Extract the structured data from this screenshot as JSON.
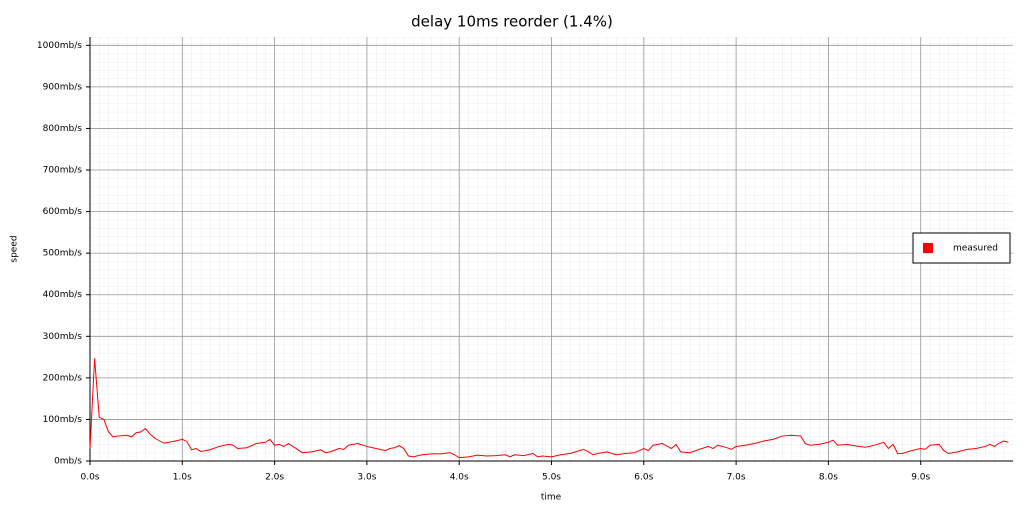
{
  "chart_data": {
    "type": "line",
    "title": "delay 10ms reorder (1.4%)",
    "x_label": "time",
    "y_label": "speed",
    "x": [
      0,
      0.05,
      0.1,
      0.15,
      0.2,
      0.25,
      0.3,
      0.4,
      0.45,
      0.5,
      0.55,
      0.6,
      0.65,
      0.7,
      0.8,
      0.9,
      1.0,
      1.05,
      1.1,
      1.15,
      1.2,
      1.3,
      1.4,
      1.5,
      1.55,
      1.6,
      1.7,
      1.8,
      1.9,
      1.95,
      2.0,
      2.05,
      2.1,
      2.15,
      2.2,
      2.3,
      2.4,
      2.5,
      2.55,
      2.6,
      2.7,
      2.75,
      2.8,
      2.9,
      3.0,
      3.1,
      3.2,
      3.25,
      3.3,
      3.35,
      3.4,
      3.45,
      3.5,
      3.6,
      3.7,
      3.8,
      3.9,
      3.95,
      4.0,
      4.1,
      4.2,
      4.3,
      4.4,
      4.5,
      4.55,
      4.6,
      4.7,
      4.8,
      4.85,
      4.9,
      5.0,
      5.1,
      5.2,
      5.3,
      5.35,
      5.4,
      5.45,
      5.5,
      5.6,
      5.7,
      5.8,
      5.9,
      6.0,
      6.05,
      6.1,
      6.2,
      6.3,
      6.35,
      6.4,
      6.5,
      6.6,
      6.7,
      6.75,
      6.8,
      6.9,
      6.95,
      7.0,
      7.1,
      7.2,
      7.3,
      7.4,
      7.5,
      7.6,
      7.7,
      7.75,
      7.8,
      7.9,
      8.0,
      8.05,
      8.1,
      8.2,
      8.3,
      8.4,
      8.5,
      8.6,
      8.65,
      8.7,
      8.75,
      8.8,
      8.9,
      9.0,
      9.05,
      9.1,
      9.2,
      9.25,
      9.3,
      9.4,
      9.5,
      9.6,
      9.7,
      9.75,
      9.8,
      9.85,
      9.9,
      9.95
    ],
    "series": [
      {
        "name": "measured",
        "color": "#ff0000",
        "values": [
          30,
          247,
          105,
          100,
          70,
          58,
          60,
          62,
          58,
          68,
          70,
          78,
          65,
          55,
          43,
          47,
          52,
          47,
          27,
          30,
          23,
          27,
          35,
          40,
          38,
          30,
          32,
          42,
          45,
          52,
          38,
          40,
          35,
          42,
          35,
          20,
          22,
          27,
          20,
          22,
          30,
          28,
          38,
          42,
          35,
          30,
          25,
          30,
          32,
          37,
          30,
          12,
          10,
          15,
          17,
          17,
          20,
          15,
          8,
          10,
          14,
          12,
          13,
          15,
          10,
          15,
          13,
          18,
          10,
          12,
          10,
          15,
          18,
          25,
          28,
          22,
          15,
          18,
          22,
          15,
          18,
          20,
          30,
          25,
          38,
          42,
          30,
          40,
          22,
          20,
          28,
          35,
          30,
          38,
          32,
          28,
          35,
          38,
          42,
          48,
          52,
          60,
          62,
          60,
          42,
          38,
          40,
          45,
          50,
          38,
          40,
          36,
          33,
          38,
          45,
          30,
          40,
          18,
          18,
          25,
          30,
          28,
          38,
          40,
          25,
          18,
          22,
          28,
          30,
          35,
          40,
          35,
          43,
          48,
          45
        ]
      }
    ],
    "xlim": [
      0,
      10
    ],
    "ylim": [
      0,
      1020
    ],
    "xticks": [
      {
        "value": 0,
        "label": "0.0s"
      },
      {
        "value": 1,
        "label": "1.0s"
      },
      {
        "value": 2,
        "label": "2.0s"
      },
      {
        "value": 3,
        "label": "3.0s"
      },
      {
        "value": 4,
        "label": "4.0s"
      },
      {
        "value": 5,
        "label": "5.0s"
      },
      {
        "value": 6,
        "label": "6.0s"
      },
      {
        "value": 7,
        "label": "7.0s"
      },
      {
        "value": 8,
        "label": "8.0s"
      },
      {
        "value": 9,
        "label": "9.0s"
      }
    ],
    "yticks": [
      {
        "value": 0,
        "label": "0mb/s"
      },
      {
        "value": 100,
        "label": "100mb/s"
      },
      {
        "value": 200,
        "label": "200mb/s"
      },
      {
        "value": 300,
        "label": "300mb/s"
      },
      {
        "value": 400,
        "label": "400mb/s"
      },
      {
        "value": 500,
        "label": "500mb/s"
      },
      {
        "value": 600,
        "label": "600mb/s"
      },
      {
        "value": 700,
        "label": "700mb/s"
      },
      {
        "value": 800,
        "label": "800mb/s"
      },
      {
        "value": 900,
        "label": "900mb/s"
      },
      {
        "value": 1000,
        "label": "1000mb/s"
      }
    ],
    "grid": true,
    "legend": "right"
  }
}
